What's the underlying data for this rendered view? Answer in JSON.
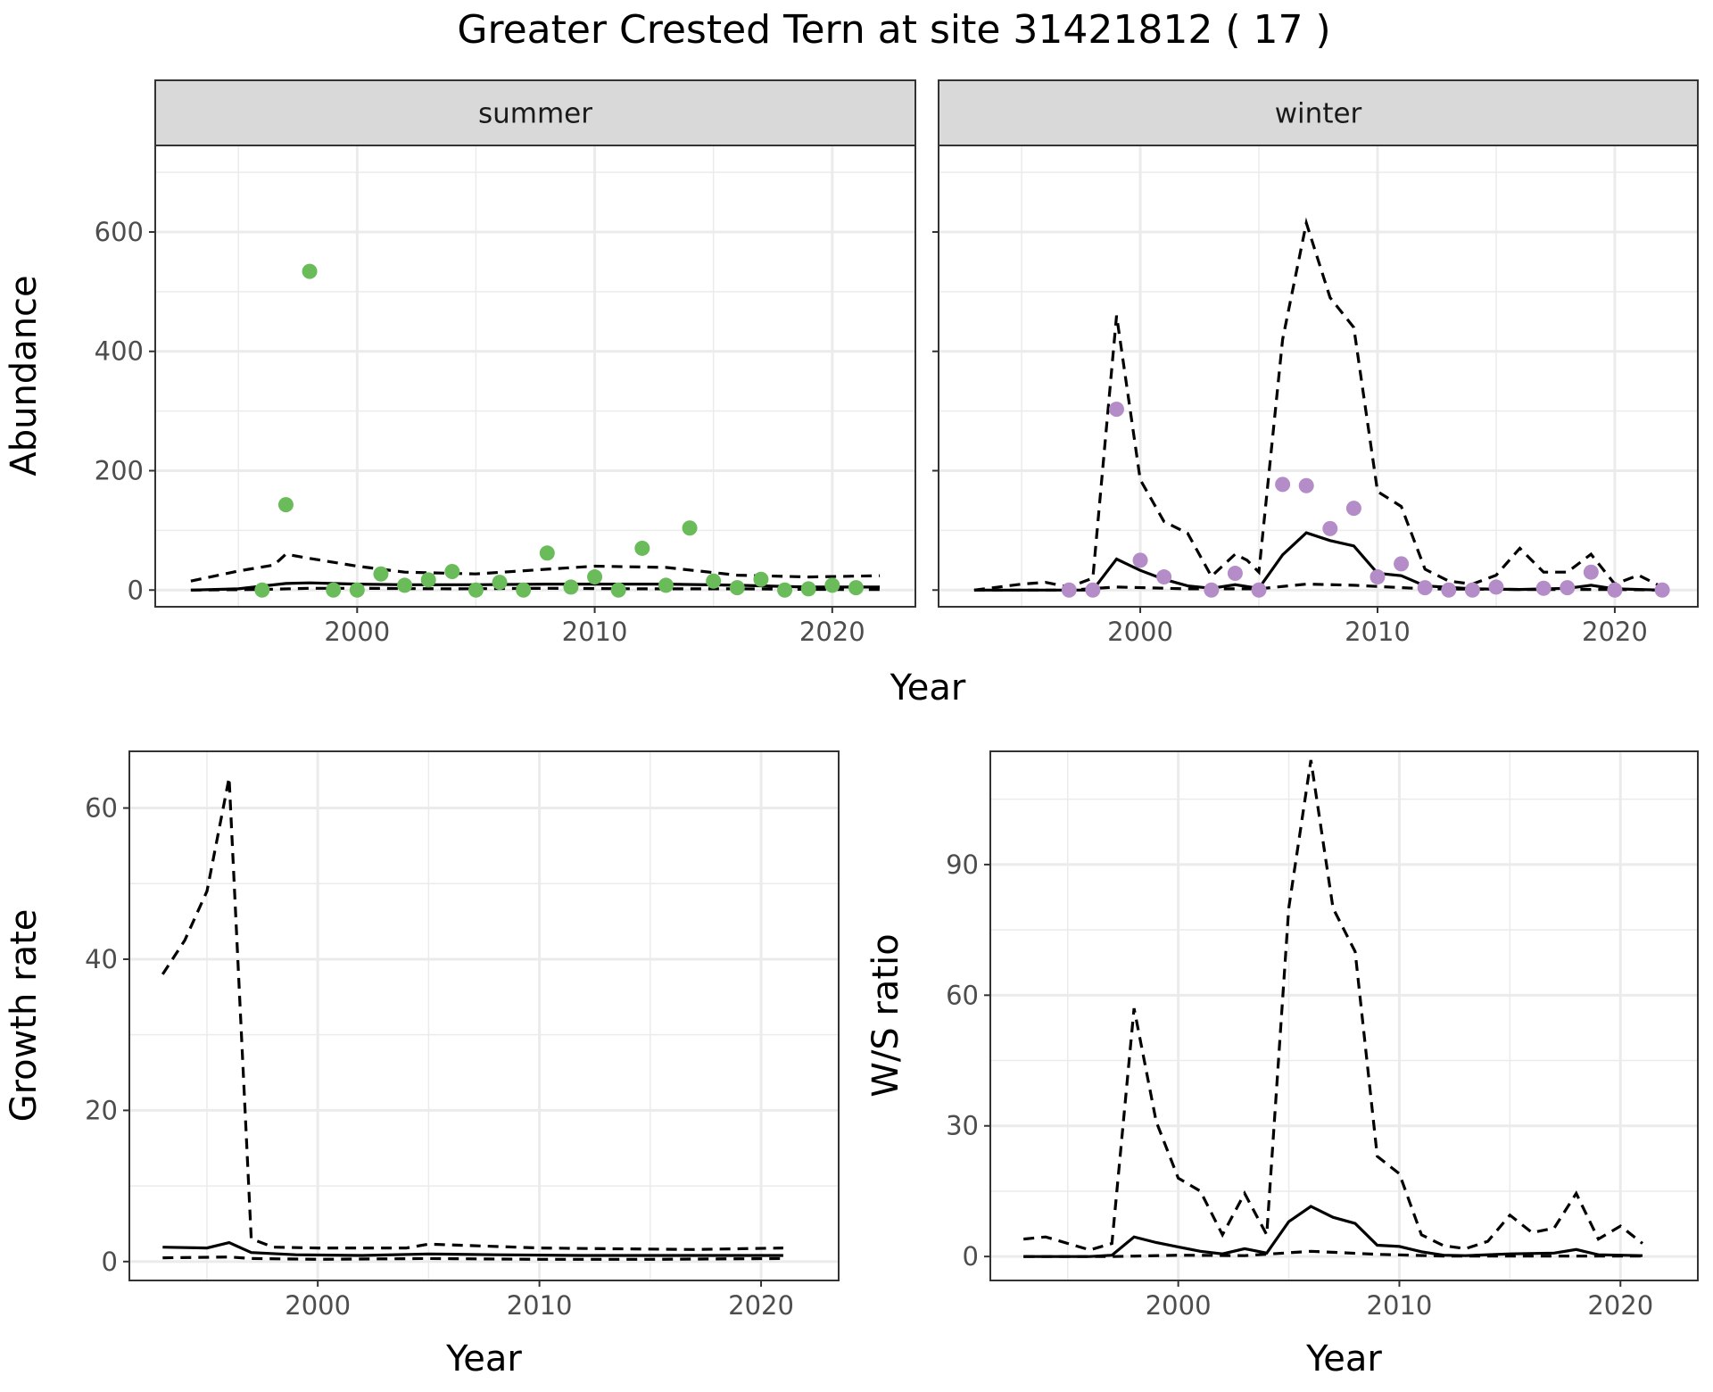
{
  "figure": {
    "title": "Greater Crested Tern at site 31421812 ( 17 )"
  },
  "chart_data": [
    {
      "type": "scatter",
      "strip_label": "summer",
      "xlabel": "Year",
      "ylabel": "Abundance",
      "xlim": [
        1991.5,
        2023.5
      ],
      "ylim": [
        -28,
        745
      ],
      "x_ticks": [
        2000,
        2010,
        2020
      ],
      "y_ticks": [
        0,
        200,
        400,
        600
      ],
      "grid": true,
      "point_color": "#6abb5a",
      "points": {
        "x": [
          1996,
          1997,
          1998,
          1999,
          2000,
          2001,
          2002,
          2003,
          2004,
          2005,
          2006,
          2007,
          2008,
          2009,
          2010,
          2011,
          2012,
          2013,
          2014,
          2015,
          2016,
          2017,
          2018,
          2019,
          2020,
          2021
        ],
        "y": [
          0,
          143,
          534,
          0,
          0,
          27,
          8,
          17,
          31,
          0,
          13,
          0,
          62,
          5,
          22,
          0,
          70,
          8,
          104,
          15,
          4,
          18,
          0,
          2,
          8,
          4
        ]
      },
      "series": [
        {
          "style": "solid",
          "x": [
            1993,
            1995,
            1997,
            1998,
            2000,
            2002,
            2005,
            2008,
            2010,
            2013,
            2016,
            2019,
            2022
          ],
          "y": [
            0,
            2,
            11,
            12,
            10,
            9,
            9,
            10,
            10,
            10,
            8,
            5,
            5
          ]
        },
        {
          "style": "dashed",
          "x": [
            1993,
            1995,
            1996.5,
            1997,
            1998,
            2000,
            2002,
            2005,
            2008,
            2010,
            2013,
            2016,
            2019,
            2022
          ],
          "y": [
            15,
            32,
            42,
            60,
            53,
            40,
            30,
            27,
            35,
            40,
            38,
            25,
            22,
            24
          ]
        },
        {
          "style": "dashed",
          "x": [
            1993,
            1996,
            1998,
            2000,
            2004,
            2008,
            2012,
            2016,
            2020,
            2022
          ],
          "y": [
            0,
            1,
            3,
            3,
            2,
            3,
            2,
            2,
            1,
            1
          ]
        }
      ]
    },
    {
      "type": "scatter",
      "strip_label": "winter",
      "xlabel": "Year",
      "ylabel": "",
      "xlim": [
        1991.5,
        2023.5
      ],
      "ylim": [
        -28,
        745
      ],
      "x_ticks": [
        2000,
        2010,
        2020
      ],
      "y_ticks": [
        0,
        200,
        400,
        600
      ],
      "grid": true,
      "point_color": "#b48cc8",
      "points": {
        "x": [
          1997,
          1998,
          1999,
          2000,
          2001,
          2003,
          2004,
          2005,
          2006,
          2007,
          2008,
          2009,
          2010,
          2011,
          2012,
          2013,
          2014,
          2015,
          2017,
          2018,
          2019,
          2020,
          2022
        ],
        "y": [
          0,
          0,
          303,
          50,
          22,
          0,
          28,
          0,
          177,
          175,
          103,
          137,
          22,
          44,
          4,
          0,
          0,
          5,
          3,
          4,
          30,
          0,
          0
        ]
      },
      "series": [
        {
          "style": "solid",
          "x": [
            1993,
            1996,
            1998,
            1999,
            2000,
            2001,
            2002,
            2003,
            2004,
            2005,
            2006,
            2007,
            2008,
            2009,
            2010,
            2011,
            2012,
            2014,
            2016,
            2018,
            2019,
            2020,
            2022
          ],
          "y": [
            0,
            0,
            0,
            52,
            33,
            18,
            7,
            3,
            9,
            3,
            59,
            96,
            83,
            74,
            28,
            24,
            7,
            2,
            1,
            3,
            8,
            2,
            0
          ]
        },
        {
          "style": "dashed",
          "x": [
            1993,
            1995,
            1996,
            1997,
            1998,
            1999,
            2000,
            2001,
            2002,
            2003,
            2004,
            2004.5,
            2005,
            2006,
            2007,
            2008,
            2009,
            2010,
            2011,
            2012,
            2013,
            2014,
            2015,
            2016,
            2017,
            2018,
            2019,
            2020,
            2021,
            2022
          ],
          "y": [
            0,
            10,
            13,
            5,
            20,
            460,
            185,
            115,
            95,
            23,
            60,
            50,
            30,
            420,
            615,
            490,
            440,
            165,
            140,
            35,
            15,
            10,
            25,
            70,
            30,
            30,
            60,
            10,
            25,
            5
          ]
        },
        {
          "style": "dashed",
          "x": [
            1993,
            1997,
            1999,
            2002,
            2005,
            2007,
            2009,
            2012,
            2016,
            2020,
            2022
          ],
          "y": [
            0,
            0,
            5,
            2,
            2,
            10,
            8,
            2,
            1,
            1,
            0
          ]
        }
      ]
    },
    {
      "type": "line",
      "strip_label": "",
      "xlabel": "Year",
      "ylabel": "Growth rate",
      "xlim": [
        1991.5,
        2023.5
      ],
      "ylim": [
        -2.5,
        67.5
      ],
      "x_ticks": [
        2000,
        2010,
        2020
      ],
      "y_ticks": [
        0,
        20,
        40,
        60
      ],
      "grid": true,
      "series": [
        {
          "style": "solid",
          "x": [
            1993,
            1995,
            1996,
            1997,
            1999,
            2002,
            2005,
            2008,
            2012,
            2016,
            2021
          ],
          "y": [
            1.9,
            1.8,
            2.5,
            1.2,
            0.9,
            0.8,
            1.0,
            0.9,
            0.8,
            0.8,
            0.8
          ]
        },
        {
          "style": "dashed",
          "x": [
            1993,
            1994,
            1995,
            1996,
            1997,
            1998,
            2000,
            2004,
            2005,
            2007,
            2010,
            2013,
            2017,
            2021
          ],
          "y": [
            38,
            42.5,
            49,
            64,
            3,
            1.9,
            1.8,
            1.8,
            2.3,
            2.1,
            1.8,
            1.7,
            1.6,
            1.8
          ]
        },
        {
          "style": "dashed",
          "x": [
            1993,
            1996,
            1997,
            2000,
            2005,
            2010,
            2015,
            2021
          ],
          "y": [
            0.5,
            0.6,
            0.4,
            0.3,
            0.4,
            0.3,
            0.3,
            0.4
          ]
        }
      ]
    },
    {
      "type": "line",
      "strip_label": "",
      "xlabel": "Year",
      "ylabel": "W/S ratio",
      "xlim": [
        1991.5,
        2023.5
      ],
      "ylim": [
        -5.5,
        116
      ],
      "x_ticks": [
        2000,
        2010,
        2020
      ],
      "y_ticks": [
        0,
        30,
        60,
        90
      ],
      "grid": true,
      "series": [
        {
          "style": "solid",
          "x": [
            1993,
            1996,
            1997,
            1998,
            1999,
            2000,
            2001,
            2002,
            2003,
            2004,
            2005,
            2006,
            2007,
            2008,
            2009,
            2010,
            2011,
            2012,
            2013,
            2015,
            2017,
            2018,
            2019,
            2021
          ],
          "y": [
            0,
            0,
            0.3,
            4.5,
            3.2,
            2.2,
            1.2,
            0.6,
            1.8,
            0.8,
            8,
            11.5,
            9,
            7.6,
            2.6,
            2.3,
            1.1,
            0.3,
            0.2,
            0.6,
            0.8,
            1.6,
            0.4,
            0.2
          ]
        },
        {
          "style": "dashed",
          "x": [
            1993,
            1994,
            1996,
            1997,
            1998,
            1999,
            2000,
            2001,
            2002,
            2003,
            2004,
            2005,
            2006,
            2007,
            2008,
            2009,
            2010,
            2011,
            2012,
            2013,
            2014,
            2015,
            2016,
            2017,
            2018,
            2019,
            2020,
            2021
          ],
          "y": [
            4,
            4.5,
            1.5,
            3,
            57,
            31,
            18,
            15,
            5,
            14.5,
            5,
            80,
            114,
            80,
            70,
            23,
            19,
            5,
            2.5,
            1.8,
            3.5,
            9.5,
            5.5,
            6.5,
            14.5,
            4,
            7,
            3
          ]
        },
        {
          "style": "dashed",
          "x": [
            1993,
            1997,
            2000,
            2003,
            2006,
            2009,
            2012,
            2016,
            2021
          ],
          "y": [
            0,
            0,
            0.3,
            0.2,
            1.2,
            0.5,
            0.1,
            0.1,
            0.1
          ]
        }
      ]
    }
  ]
}
